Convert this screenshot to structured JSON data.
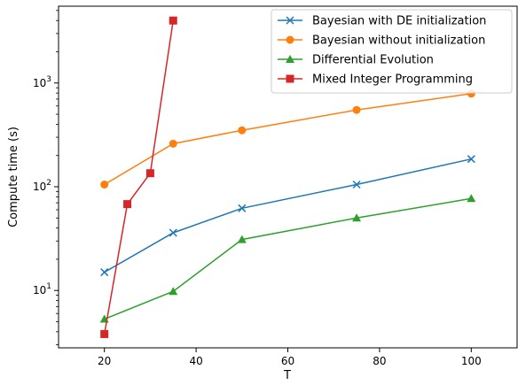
{
  "chart_data": {
    "type": "line",
    "title": "",
    "xlabel": "T",
    "ylabel": "Compute time (s)",
    "xlim": [
      10,
      110
    ],
    "ylim": [
      2.8,
      5500
    ],
    "yscale": "log",
    "x_ticks": [
      20,
      40,
      60,
      80,
      100
    ],
    "y_ticks": [
      {
        "value": 10,
        "base": "10",
        "exp": "1"
      },
      {
        "value": 100,
        "base": "10",
        "exp": "2"
      },
      {
        "value": 1000,
        "base": "10",
        "exp": "3"
      }
    ],
    "legend_position": "top-right",
    "grid": false,
    "series": [
      {
        "name": "Bayesian with DE initialization",
        "color": "#1f77b4",
        "marker": "x",
        "x": [
          20,
          35,
          50,
          75,
          100
        ],
        "y": [
          15,
          36,
          62,
          105,
          185
        ]
      },
      {
        "name": "Bayesian without initialization",
        "color": "#ff7f0e",
        "marker": "circle",
        "x": [
          20,
          35,
          50,
          75,
          100
        ],
        "y": [
          105,
          260,
          350,
          550,
          790
        ]
      },
      {
        "name": "Differential Evolution",
        "color": "#2ca02c",
        "marker": "triangle",
        "x": [
          20,
          35,
          50,
          75,
          100
        ],
        "y": [
          5.3,
          9.8,
          31,
          50,
          77
        ]
      },
      {
        "name": "Mixed Integer Programming",
        "color": "#d62728",
        "marker": "square",
        "x": [
          20,
          25,
          30,
          35
        ],
        "y": [
          3.8,
          68,
          135,
          4000
        ]
      }
    ]
  }
}
